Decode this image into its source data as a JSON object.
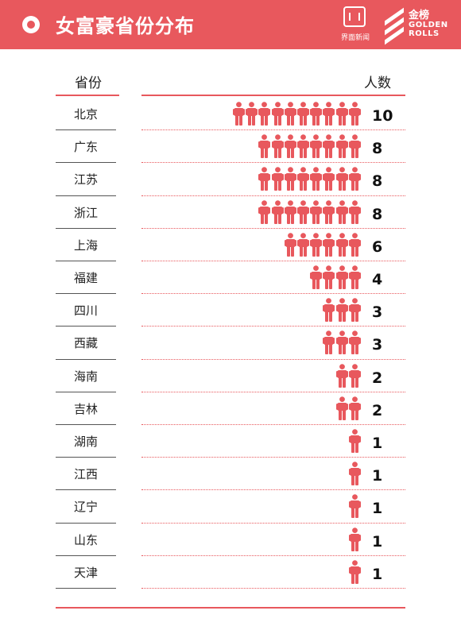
{
  "header": {
    "title": "女富豪省份分布",
    "logo_jiemian": "界面新闻",
    "logo_jinbang_cn": "金榜",
    "logo_jinbang_en_1": "GOLDEN",
    "logo_jinbang_en_2": "ROLLS"
  },
  "colors": {
    "accent": "#e8585d",
    "header_bg": "#e8585d",
    "text": "#222222"
  },
  "chart_data": {
    "type": "bar",
    "title": "女富豪省份分布",
    "category_header": "省份",
    "value_header": "人数",
    "categories": [
      "北京",
      "广东",
      "江苏",
      "浙江",
      "上海",
      "福建",
      "四川",
      "西藏",
      "海南",
      "吉林",
      "湖南",
      "江西",
      "辽宁",
      "山东",
      "天津"
    ],
    "values": [
      10,
      8,
      8,
      8,
      6,
      4,
      3,
      3,
      2,
      2,
      1,
      1,
      1,
      1,
      1
    ],
    "mark": "person-icon"
  }
}
